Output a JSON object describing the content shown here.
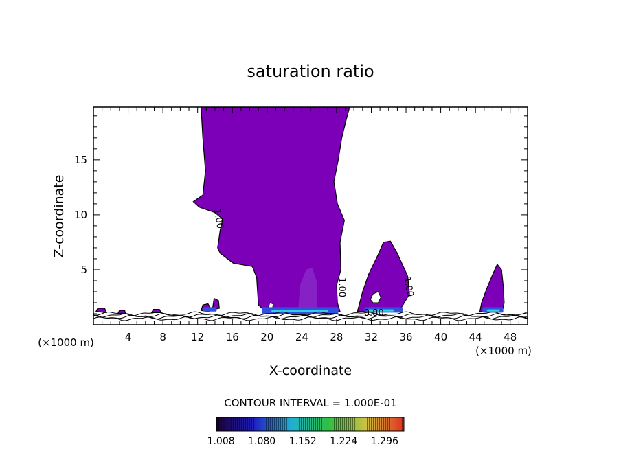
{
  "chart_data": {
    "type": "contour",
    "title": "saturation ratio",
    "xlabel": "X-coordinate",
    "ylabel": "Z-coordinate",
    "xunit": "(×1000 m)",
    "xlim": [
      0,
      50
    ],
    "ylim": [
      0,
      19.8
    ],
    "xticks": [
      4,
      8,
      12,
      16,
      20,
      24,
      28,
      32,
      36,
      40,
      44,
      48
    ],
    "yticks": [
      5,
      10,
      15
    ],
    "contour_interval_text": "CONTOUR INTERVAL = 1.000E-01",
    "contour_labels": [
      {
        "text": "1.00",
        "x": 14.1,
        "z": 9.6,
        "angle": 80
      },
      {
        "text": "1.00",
        "x": 28.3,
        "z": 3.4,
        "angle": 90
      },
      {
        "text": "1.00",
        "x": 36.0,
        "z": 3.4,
        "angle": 80
      },
      {
        "text": "0.80",
        "x": 32.3,
        "z": 0.8,
        "angle": 0
      }
    ],
    "colorbar": {
      "ticks": [
        "1.008",
        "1.080",
        "1.152",
        "1.224",
        "1.296"
      ],
      "vmin": 1.0,
      "vmax": 1.33,
      "colors": [
        "#1a0030",
        "#2020c0",
        "#20b0d0",
        "#30c040",
        "#d0c040",
        "#e03020"
      ]
    },
    "fill_colors": {
      "supersaturated": "#7b00b8",
      "core": "#8a2bc8",
      "low": "#3050e0",
      "high": "#30d0e0"
    },
    "regions": [
      {
        "name": "main plume",
        "polygon": [
          [
            12.4,
            19.8
          ],
          [
            12.6,
            17
          ],
          [
            12.9,
            14
          ],
          [
            12.6,
            11.8
          ],
          [
            11.5,
            11.2
          ],
          [
            12.2,
            10.7
          ],
          [
            14,
            10.2
          ],
          [
            14.9,
            9.6
          ],
          [
            14.6,
            8.6
          ],
          [
            14.3,
            7
          ],
          [
            14.6,
            6.5
          ],
          [
            16.1,
            5.6
          ],
          [
            18.3,
            5.3
          ],
          [
            18.8,
            4.3
          ],
          [
            19,
            1.8
          ],
          [
            19.8,
            1.2
          ],
          [
            22,
            1
          ],
          [
            26,
            1
          ],
          [
            27.4,
            1
          ],
          [
            28.4,
            1.2
          ],
          [
            28.1,
            2
          ],
          [
            28,
            3.6
          ],
          [
            28.5,
            5
          ],
          [
            28.4,
            7.5
          ],
          [
            28.9,
            9.5
          ],
          [
            28.1,
            11
          ],
          [
            27.7,
            13
          ],
          [
            28.2,
            15
          ],
          [
            28.6,
            17
          ],
          [
            29.1,
            18.6
          ],
          [
            29.5,
            19.8
          ]
        ]
      },
      {
        "name": "plume 32",
        "polygon": [
          [
            30.4,
            1.2
          ],
          [
            31,
            3
          ],
          [
            31.7,
            4.6
          ],
          [
            32.8,
            6.4
          ],
          [
            33.4,
            7.5
          ],
          [
            34.2,
            7.6
          ],
          [
            35,
            6.5
          ],
          [
            36.2,
            4.4
          ],
          [
            36.4,
            2.8
          ],
          [
            35.5,
            1.6
          ],
          [
            34,
            1.2
          ],
          [
            32,
            1.2
          ]
        ]
      },
      {
        "name": "plume 46",
        "polygon": [
          [
            44.5,
            1.2
          ],
          [
            44.7,
            2
          ],
          [
            45.3,
            3.3
          ],
          [
            46,
            4.6
          ],
          [
            46.5,
            5.5
          ],
          [
            47,
            5
          ],
          [
            47.2,
            3.5
          ],
          [
            47.3,
            2
          ],
          [
            47.1,
            1.2
          ]
        ]
      },
      {
        "name": "small cell 13",
        "polygon": [
          [
            12.4,
            1.3
          ],
          [
            12.6,
            1.8
          ],
          [
            13.2,
            1.9
          ],
          [
            13.5,
            1.5
          ],
          [
            13.3,
            1.2
          ]
        ]
      },
      {
        "name": "small cell 14",
        "polygon": [
          [
            13.7,
            1.4
          ],
          [
            13.9,
            2.4
          ],
          [
            14.4,
            2.2
          ],
          [
            14.5,
            1.5
          ]
        ]
      },
      {
        "name": "small cell 1",
        "polygon": [
          [
            0.3,
            1.2
          ],
          [
            0.5,
            1.5
          ],
          [
            1.3,
            1.5
          ],
          [
            1.5,
            1.1
          ]
        ]
      },
      {
        "name": "small cell 7",
        "polygon": [
          [
            6.7,
            1.1
          ],
          [
            6.9,
            1.4
          ],
          [
            7.6,
            1.4
          ],
          [
            7.8,
            1.1
          ]
        ]
      },
      {
        "name": "small cell 3",
        "polygon": [
          [
            2.8,
            1
          ],
          [
            3,
            1.3
          ],
          [
            3.6,
            1.3
          ],
          [
            3.7,
            1
          ]
        ]
      }
    ],
    "holes": [
      {
        "polygon": [
          [
            31.9,
            2.3
          ],
          [
            32.2,
            2.8
          ],
          [
            32.8,
            3
          ],
          [
            33.1,
            2.5
          ],
          [
            32.8,
            2
          ],
          [
            32.2,
            2
          ]
        ]
      },
      {
        "polygon": [
          [
            20.1,
            1.4
          ],
          [
            20.3,
            2
          ],
          [
            20.7,
            1.9
          ],
          [
            20.6,
            1.3
          ]
        ]
      }
    ],
    "core_band": [
      [
        23.6,
        1.5
      ],
      [
        23.8,
        3.6
      ],
      [
        24.5,
        5
      ],
      [
        25.2,
        5.2
      ],
      [
        25.7,
        4
      ],
      [
        25.8,
        1.5
      ]
    ],
    "low_patches": [
      {
        "x0": 19.4,
        "x1": 28.2,
        "z0": 1.0,
        "z1": 1.6
      },
      {
        "x0": 31.2,
        "x1": 35.6,
        "z0": 1.1,
        "z1": 1.6
      },
      {
        "x0": 44.8,
        "x1": 47.2,
        "z0": 1.1,
        "z1": 1.6
      },
      {
        "x0": 12.6,
        "x1": 14.2,
        "z0": 1.2,
        "z1": 1.6
      }
    ],
    "high_patches": [
      {
        "x0": 20.5,
        "x1": 27.0,
        "z0": 1.15,
        "z1": 1.35
      },
      {
        "x0": 31.6,
        "x1": 34.6,
        "z0": 1.2,
        "z1": 1.4
      },
      {
        "x0": 45.3,
        "x1": 46.8,
        "z0": 1.2,
        "z1": 1.4
      }
    ],
    "surface_lines": [
      0.55,
      0.7,
      0.85,
      1.0
    ]
  }
}
